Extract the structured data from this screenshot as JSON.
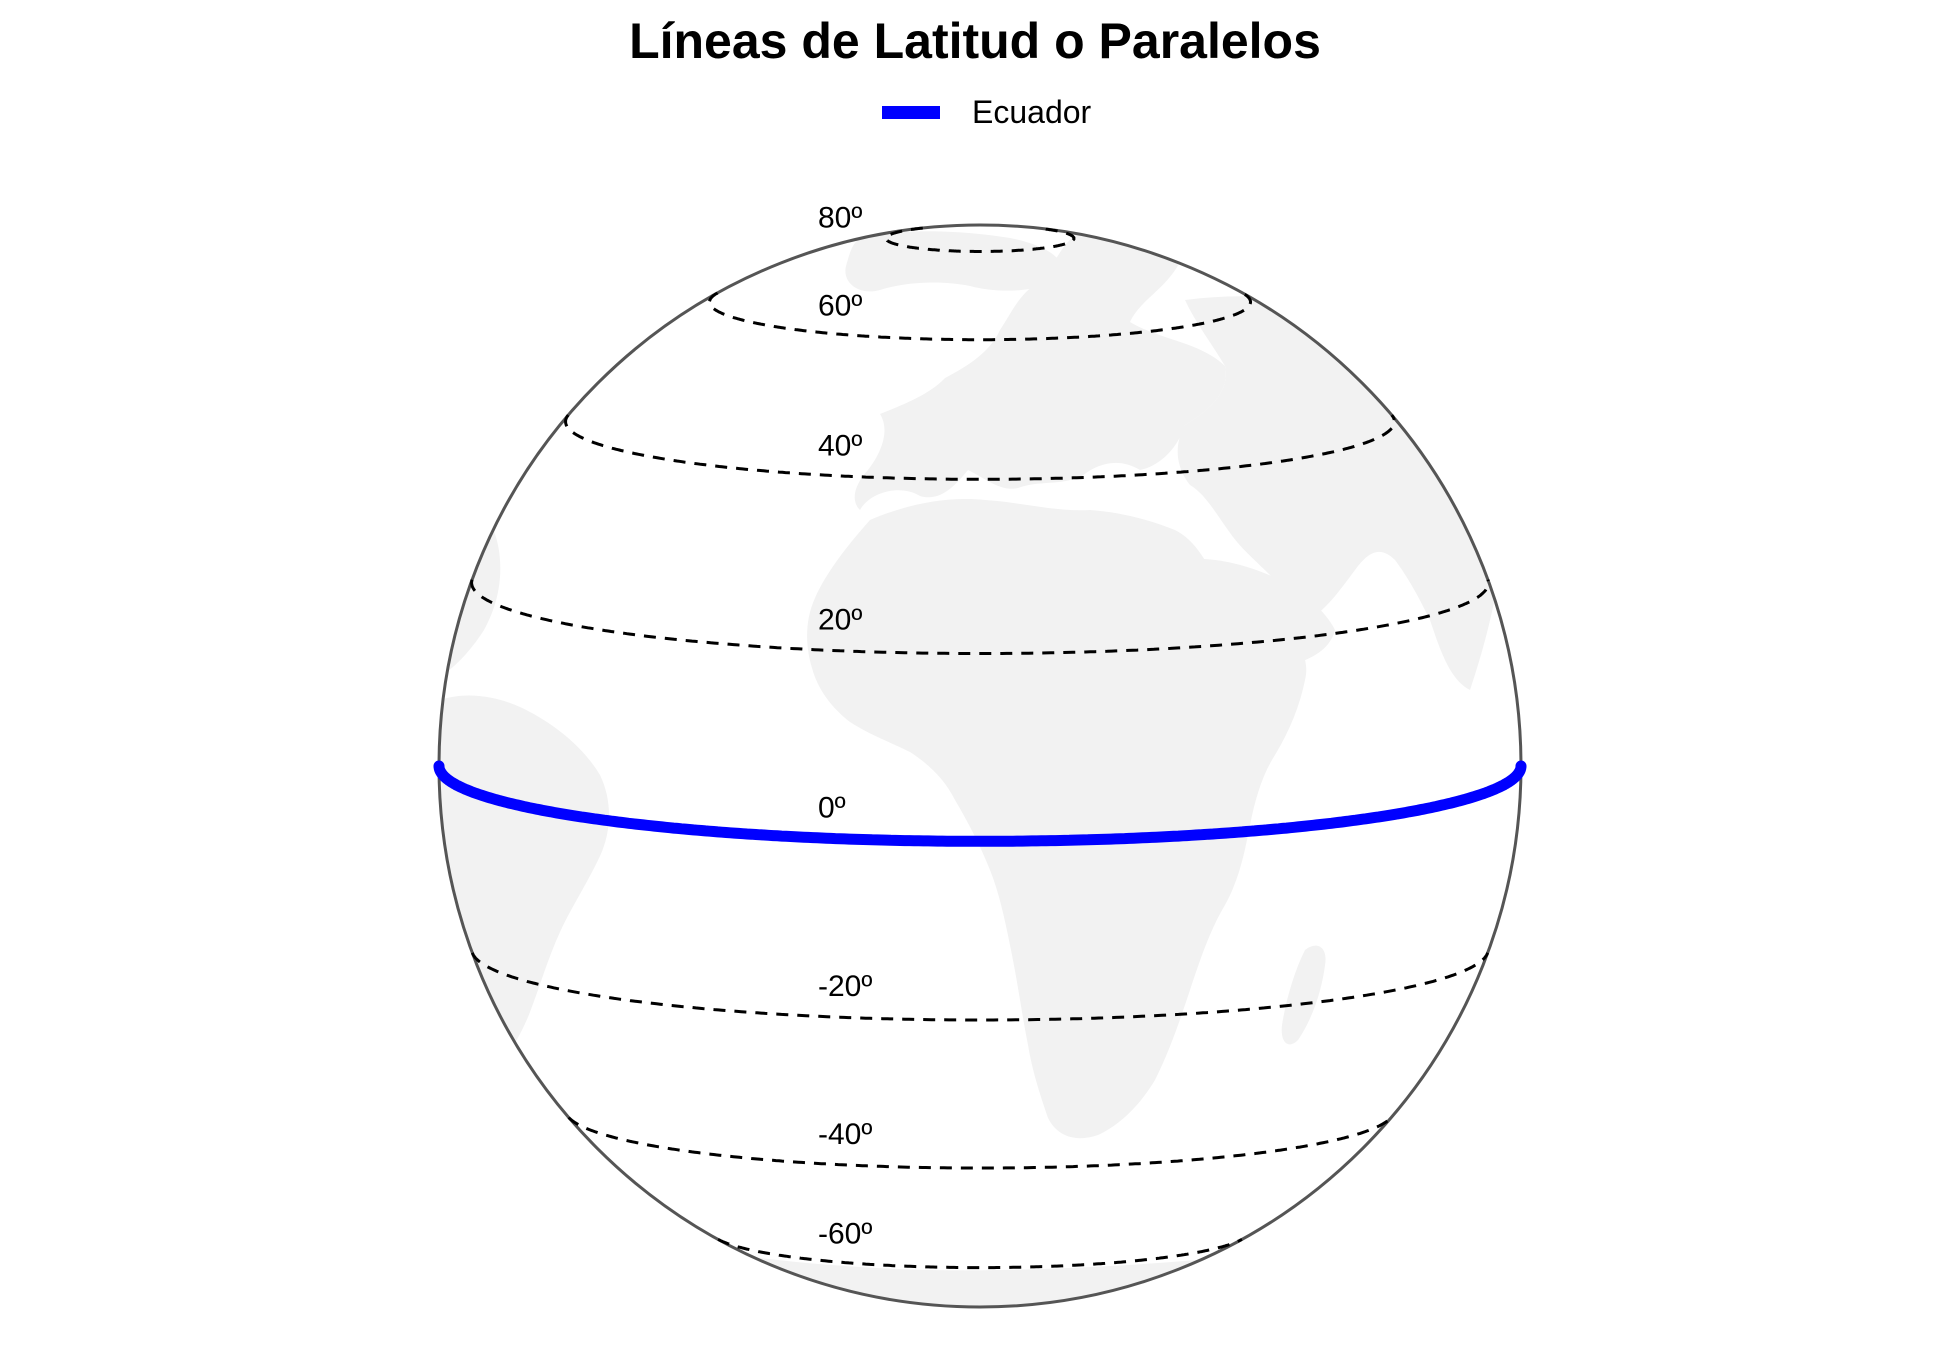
{
  "title": "Líneas de Latitud o Paralelos",
  "legend": {
    "label": "Ecuador",
    "color": "#0000ff"
  },
  "map": {
    "projection": "orthographic",
    "globe_outline_color": "#555555",
    "land_color": "#f2f2f2",
    "parallel_style": "dashed",
    "parallel_color": "#000000",
    "equator_color": "#0000ff",
    "parallels": [
      {
        "lat": 80,
        "label": "80º"
      },
      {
        "lat": 60,
        "label": "60º"
      },
      {
        "lat": 40,
        "label": "40º"
      },
      {
        "lat": 20,
        "label": "20º"
      },
      {
        "lat": 0,
        "label": "0º"
      },
      {
        "lat": -20,
        "label": "-20º"
      },
      {
        "lat": -40,
        "label": "-40º"
      },
      {
        "lat": -60,
        "label": "-60º"
      }
    ]
  }
}
